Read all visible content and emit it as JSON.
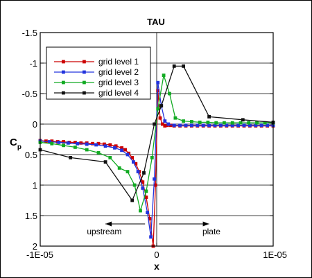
{
  "chart_data": {
    "type": "line",
    "title": "TAU",
    "xlabel": "x",
    "ylabel": "C",
    "ylabel_sub": "p",
    "xlim": [
      -1e-05,
      1e-05
    ],
    "ylim": [
      -1.5,
      2
    ],
    "y_inverted": true,
    "grid": true,
    "legend_position": "top-left",
    "x_ticks": [
      -1e-05,
      0,
      1e-05
    ],
    "x_tick_labels": [
      "-1E-05",
      "0",
      "1E-05"
    ],
    "y_ticks": [
      -1.5,
      -1,
      -0.5,
      0,
      0.5,
      1,
      1.5,
      2
    ],
    "y_tick_labels": [
      "-1.5",
      "-1",
      "-0.5",
      "0",
      "0.5",
      "1",
      "1.5",
      "2"
    ],
    "annotations": [
      {
        "text": "upstream",
        "x": -4.5e-06,
        "y": 1.75,
        "arrow": "left",
        "arrow_x": [
          -1e-06,
          -4.4e-06
        ]
      },
      {
        "text": "plate",
        "x": 4.7e-06,
        "y": 1.75,
        "arrow": "right",
        "arrow_x": [
          2e-07,
          4.5e-06
        ]
      }
    ],
    "series": [
      {
        "name": "grid level 1",
        "color": "#cc0000",
        "x": [
          -1e-05,
          -9.5e-06,
          -9e-06,
          -8.5e-06,
          -8e-06,
          -7.5e-06,
          -7e-06,
          -6.5e-06,
          -6e-06,
          -5.5e-06,
          -5e-06,
          -4.5e-06,
          -4e-06,
          -3.5e-06,
          -3e-06,
          -2.7e-06,
          -2.4e-06,
          -2.1e-06,
          -1.8e-06,
          -1.5e-06,
          -1.2e-06,
          -9e-07,
          -6e-07,
          -3e-07,
          -1e-07,
          1e-07,
          3e-07,
          5e-07,
          7e-07,
          9e-07,
          1.2e-06,
          1.5e-06,
          2e-06,
          2.5e-06,
          3e-06,
          3.5e-06,
          4e-06,
          4.5e-06,
          5e-06,
          5.5e-06,
          6e-06,
          6.5e-06,
          7e-06,
          7.5e-06,
          8e-06,
          8.5e-06,
          9e-06,
          9.5e-06,
          1e-05
        ],
        "y": [
          0.27,
          0.28,
          0.28,
          0.29,
          0.29,
          0.3,
          0.3,
          0.31,
          0.31,
          0.32,
          0.32,
          0.33,
          0.34,
          0.36,
          0.39,
          0.42,
          0.48,
          0.55,
          0.65,
          0.78,
          0.95,
          1.2,
          1.55,
          2.0,
          1.0,
          -0.55,
          -0.1,
          0.0,
          0.03,
          0.02,
          0.02,
          0.03,
          0.03,
          0.03,
          0.03,
          0.03,
          0.03,
          0.03,
          0.03,
          0.03,
          0.03,
          0.03,
          0.03,
          0.03,
          0.03,
          0.03,
          0.03,
          0.03,
          0.03
        ]
      },
      {
        "name": "grid level 2",
        "color": "#2233dd",
        "x": [
          -1e-05,
          -9.2e-06,
          -8.4e-06,
          -7.6e-06,
          -6.8e-06,
          -6e-06,
          -5.2e-06,
          -4.4e-06,
          -3.6e-06,
          -3e-06,
          -2.5e-06,
          -2e-06,
          -1.6e-06,
          -1.2e-06,
          -8e-07,
          -5e-07,
          -2e-07,
          1e-07,
          4e-07,
          7e-07,
          1e-06,
          1.5e-06,
          2e-06,
          2.5e-06,
          3e-06,
          3.5e-06,
          4e-06,
          4.5e-06,
          5e-06,
          5.5e-06,
          6e-06,
          6.5e-06,
          7e-06,
          7.5e-06,
          8e-06,
          8.5e-06,
          9e-06,
          9.5e-06,
          1e-05
        ],
        "y": [
          0.28,
          0.29,
          0.3,
          0.31,
          0.32,
          0.33,
          0.34,
          0.36,
          0.39,
          0.43,
          0.5,
          0.62,
          0.78,
          1.05,
          1.45,
          1.85,
          0.9,
          -0.68,
          -0.3,
          -0.05,
          0.0,
          0.02,
          0.02,
          0.02,
          0.02,
          0.02,
          0.02,
          0.02,
          0.02,
          0.02,
          0.02,
          0.02,
          0.02,
          0.02,
          0.02,
          0.02,
          0.02,
          0.02,
          0.02
        ]
      },
      {
        "name": "grid level 3",
        "color": "#11aa22",
        "x": [
          -1e-05,
          -9e-06,
          -8e-06,
          -7e-06,
          -6e-06,
          -5e-06,
          -4e-06,
          -3.2e-06,
          -2.5e-06,
          -1.9e-06,
          -1.4e-06,
          -9e-07,
          -4e-07,
          1e-07,
          6e-07,
          1.1e-06,
          1.6e-06,
          2.3e-06,
          3e-06,
          3.7e-06,
          4.4e-06,
          5.1e-06,
          5.8e-06,
          6.5e-06,
          7.2e-06,
          7.9e-06,
          8.6e-06,
          9.3e-06,
          1e-05
        ],
        "y": [
          0.3,
          0.32,
          0.35,
          0.38,
          0.42,
          0.47,
          0.55,
          0.72,
          0.78,
          1.0,
          1.42,
          1.1,
          0.55,
          -0.25,
          -0.8,
          -0.5,
          -0.1,
          -0.05,
          -0.04,
          -0.03,
          -0.03,
          -0.02,
          -0.02,
          -0.02,
          -0.02,
          -0.02,
          -0.02,
          -0.02,
          -0.02
        ]
      },
      {
        "name": "grid level 4",
        "color": "#111111",
        "x": [
          -1e-05,
          -7.4e-06,
          -4.4e-06,
          -2.1e-06,
          -1.1e-06,
          -2e-07,
          4e-07,
          1.5e-06,
          2.3e-06,
          4.5e-06,
          7.4e-06,
          1e-05
        ],
        "y": [
          0.42,
          0.55,
          0.62,
          1.25,
          0.8,
          0.0,
          -0.3,
          -0.95,
          -0.95,
          -0.12,
          -0.07,
          -0.03
        ]
      }
    ]
  }
}
